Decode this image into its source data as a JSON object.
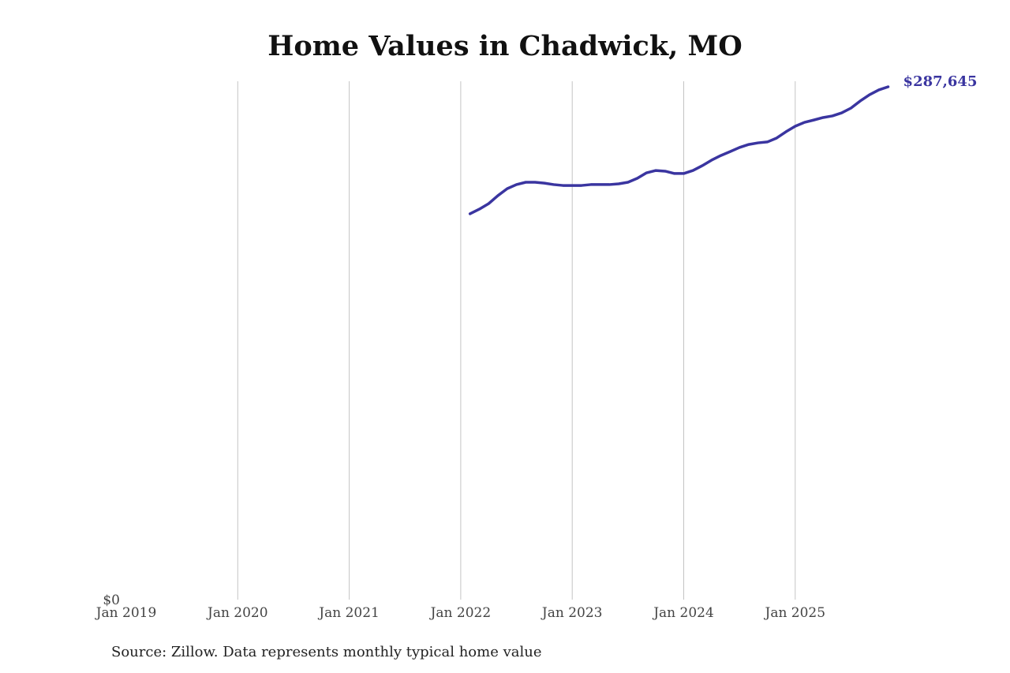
{
  "chart_data": {
    "type": "line",
    "title": "Home Values in Chadwick, MO",
    "source": "Source: Zillow. Data represents monthly typical home value",
    "xlabel": "",
    "ylabel": "",
    "x_ticks": [
      "Jan 2019",
      "Jan 2020",
      "Jan 2021",
      "Jan 2022",
      "Jan 2023",
      "Jan 2024",
      "Jan 2025"
    ],
    "x_tick_dates": [
      "2019-01",
      "2020-01",
      "2021-01",
      "2022-01",
      "2023-01",
      "2024-01",
      "2025-01"
    ],
    "y_ticks": [
      "$0"
    ],
    "ylim": [
      0,
      287645
    ],
    "grid": "vertical",
    "line_color": "#3a35a0",
    "end_label": "$287,645",
    "series": [
      {
        "x": [
          "2022-02",
          "2022-03",
          "2022-04",
          "2022-05",
          "2022-06",
          "2022-07",
          "2022-08",
          "2022-09",
          "2022-10",
          "2022-11",
          "2022-12",
          "2023-01",
          "2023-02",
          "2023-03",
          "2023-04",
          "2023-05",
          "2023-06",
          "2023-07",
          "2023-08",
          "2023-09",
          "2023-10",
          "2023-11",
          "2023-12",
          "2024-01",
          "2024-02",
          "2024-03",
          "2024-04",
          "2024-05",
          "2024-06",
          "2024-07",
          "2024-08",
          "2024-09",
          "2024-10",
          "2024-11",
          "2024-12",
          "2025-01",
          "2025-02",
          "2025-03",
          "2025-04",
          "2025-05",
          "2025-06",
          "2025-07",
          "2025-08",
          "2025-09",
          "2025-10",
          "2025-11"
        ],
        "values": [
          216400,
          219000,
          222100,
          226600,
          230500,
          232800,
          234100,
          234100,
          233600,
          232800,
          232300,
          232300,
          232300,
          232800,
          232800,
          232800,
          233200,
          234100,
          236300,
          239400,
          240700,
          240300,
          239000,
          239000,
          240700,
          243400,
          246500,
          249100,
          251300,
          253600,
          255300,
          256200,
          256700,
          258900,
          262400,
          265500,
          267700,
          269000,
          270400,
          271300,
          273000,
          275700,
          279700,
          283200,
          285900,
          287645
        ]
      }
    ]
  }
}
